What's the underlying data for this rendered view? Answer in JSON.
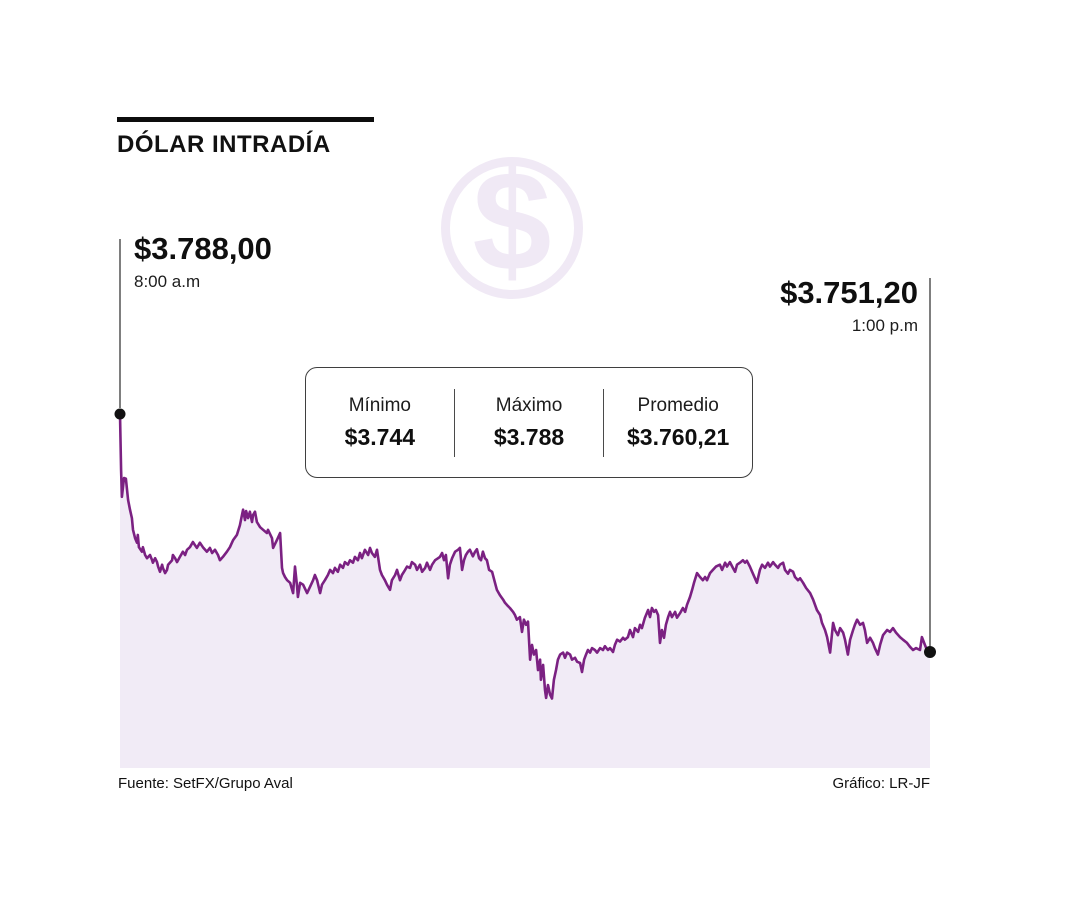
{
  "header": {
    "title": "DÓLAR INTRADÍA",
    "icon_glyph": "$"
  },
  "annotations": {
    "start": {
      "price": "$3.788,00",
      "time": "8:00 a.m"
    },
    "end": {
      "price": "$3.751,20",
      "time": "1:00 p.m"
    }
  },
  "stats": {
    "items": [
      {
        "label": "Mínimo",
        "value": "$3.744"
      },
      {
        "label": "Máximo",
        "value": "$3.788"
      },
      {
        "label": "Promedio",
        "value": "$3.760,21"
      }
    ]
  },
  "footer": {
    "source": "Fuente: SetFX/Grupo Aval",
    "credit": "Gráfico: LR-JF"
  },
  "chart_data": {
    "type": "area",
    "title": "DÓLAR INTRADÍA",
    "x_unit": "minutes since 8:00 a.m",
    "x_range": [
      0,
      300
    ],
    "x_start_label": "8:00 a.m",
    "x_end_label": "1:00 p.m",
    "y_unit": "COP per USD",
    "ylim": [
      3733,
      3791
    ],
    "open": 3788.0,
    "close": 3751.2,
    "min": 3744,
    "max": 3788,
    "average": 3760.21,
    "grid": false,
    "legend": false,
    "colors": {
      "line": "#7B2182",
      "fill": "#F1EBF6",
      "icon": "#F0E9F5",
      "dot": "#111111",
      "annotation_line": "#3a3a3a"
    },
    "points": [
      [
        0,
        3788
      ],
      [
        0.4,
        3779.3
      ],
      [
        0.7,
        3775.2
      ],
      [
        1.5,
        3778.1
      ],
      [
        2.2,
        3778
      ],
      [
        3,
        3774.7
      ],
      [
        3.7,
        3773.2
      ],
      [
        4.4,
        3771.9
      ],
      [
        4.8,
        3770.1
      ],
      [
        5.6,
        3768.8
      ],
      [
        6.3,
        3768.1
      ],
      [
        6.6,
        3769.3
      ],
      [
        7,
        3767.4
      ],
      [
        8.1,
        3766.7
      ],
      [
        8.5,
        3767.4
      ],
      [
        9.3,
        3766.2
      ],
      [
        10,
        3765.7
      ],
      [
        11.1,
        3766.2
      ],
      [
        11.9,
        3765.4
      ],
      [
        12.2,
        3765
      ],
      [
        13,
        3765.7
      ],
      [
        13.7,
        3765.1
      ],
      [
        14.1,
        3764.4
      ],
      [
        14.8,
        3763.6
      ],
      [
        15.6,
        3764.7
      ],
      [
        15.9,
        3764.2
      ],
      [
        16.7,
        3763.4
      ],
      [
        17.4,
        3763.9
      ],
      [
        17.8,
        3764.7
      ],
      [
        19.3,
        3765.4
      ],
      [
        19.6,
        3766.2
      ],
      [
        20.4,
        3765.7
      ],
      [
        21.1,
        3765.1
      ],
      [
        22.2,
        3765.9
      ],
      [
        23.3,
        3766.7
      ],
      [
        24.1,
        3766.2
      ],
      [
        24.8,
        3767
      ],
      [
        25.9,
        3767.4
      ],
      [
        27,
        3768.2
      ],
      [
        27.8,
        3767.7
      ],
      [
        28.5,
        3767.3
      ],
      [
        29.6,
        3768.1
      ],
      [
        30.7,
        3767.4
      ],
      [
        32.2,
        3766.7
      ],
      [
        33.3,
        3767.3
      ],
      [
        34.1,
        3766.5
      ],
      [
        35.2,
        3767
      ],
      [
        36.3,
        3766.2
      ],
      [
        37,
        3765.4
      ],
      [
        38.1,
        3765.9
      ],
      [
        39.6,
        3766.7
      ],
      [
        40.7,
        3767.4
      ],
      [
        41.9,
        3768.5
      ],
      [
        43.3,
        3769.3
      ],
      [
        44.4,
        3770.8
      ],
      [
        45.2,
        3772.4
      ],
      [
        45.6,
        3773.2
      ],
      [
        46.3,
        3771.6
      ],
      [
        46.7,
        3773
      ],
      [
        47.4,
        3771.9
      ],
      [
        48.1,
        3772.9
      ],
      [
        48.9,
        3771.3
      ],
      [
        49.3,
        3772.4
      ],
      [
        50,
        3772.9
      ],
      [
        50.7,
        3771.3
      ],
      [
        51.9,
        3770.5
      ],
      [
        53,
        3770.1
      ],
      [
        54.4,
        3769.6
      ],
      [
        54.8,
        3770.1
      ],
      [
        56.3,
        3768.8
      ],
      [
        56.7,
        3767.3
      ],
      [
        58.1,
        3768.5
      ],
      [
        59.3,
        3769.6
      ],
      [
        60,
        3764.2
      ],
      [
        60.4,
        3763.4
      ],
      [
        61.1,
        3762.8
      ],
      [
        61.9,
        3762.3
      ],
      [
        63,
        3761.9
      ],
      [
        64.1,
        3760.3
      ],
      [
        64.8,
        3764.4
      ],
      [
        65.6,
        3761.3
      ],
      [
        65.9,
        3759.7
      ],
      [
        66.7,
        3761.9
      ],
      [
        67.8,
        3761.6
      ],
      [
        69.3,
        3760.3
      ],
      [
        70.4,
        3761.3
      ],
      [
        71.5,
        3762.3
      ],
      [
        72.2,
        3763.1
      ],
      [
        73,
        3762.3
      ],
      [
        74.1,
        3760.3
      ],
      [
        74.8,
        3761.6
      ],
      [
        75.9,
        3762.3
      ],
      [
        77,
        3763.1
      ],
      [
        77.8,
        3763.9
      ],
      [
        78.9,
        3763.4
      ],
      [
        79.6,
        3764.2
      ],
      [
        80.7,
        3763.6
      ],
      [
        81.5,
        3764.7
      ],
      [
        82.6,
        3764.2
      ],
      [
        83.3,
        3765.1
      ],
      [
        84.4,
        3764.7
      ],
      [
        85.2,
        3765.4
      ],
      [
        86.3,
        3765
      ],
      [
        87,
        3765.9
      ],
      [
        88.1,
        3765.4
      ],
      [
        88.9,
        3766.5
      ],
      [
        89.6,
        3765.7
      ],
      [
        90.7,
        3767
      ],
      [
        91.9,
        3766.2
      ],
      [
        92.6,
        3767.3
      ],
      [
        93.3,
        3766.5
      ],
      [
        94.4,
        3765.9
      ],
      [
        95.2,
        3767
      ],
      [
        96.3,
        3763.9
      ],
      [
        97,
        3763.1
      ],
      [
        98.1,
        3762.3
      ],
      [
        98.9,
        3761.6
      ],
      [
        100,
        3760.8
      ],
      [
        100.7,
        3762.3
      ],
      [
        101.9,
        3763.1
      ],
      [
        102.6,
        3763.9
      ],
      [
        103.7,
        3762.3
      ],
      [
        104.4,
        3763.1
      ],
      [
        105.6,
        3763.9
      ],
      [
        106.3,
        3764.4
      ],
      [
        107.4,
        3764.2
      ],
      [
        108.1,
        3765.1
      ],
      [
        109.3,
        3764.7
      ],
      [
        110,
        3763.9
      ],
      [
        111.1,
        3764.7
      ],
      [
        111.9,
        3763.6
      ],
      [
        113,
        3764.2
      ],
      [
        113.7,
        3765
      ],
      [
        114.8,
        3763.9
      ],
      [
        115.6,
        3764.7
      ],
      [
        116.7,
        3765.4
      ],
      [
        117.8,
        3765.7
      ],
      [
        118.5,
        3765.9
      ],
      [
        119.3,
        3766.5
      ],
      [
        120,
        3765.4
      ],
      [
        120.7,
        3766.2
      ],
      [
        121.5,
        3762.6
      ],
      [
        122.2,
        3764.7
      ],
      [
        123,
        3765.7
      ],
      [
        124.1,
        3766.7
      ],
      [
        125.2,
        3767
      ],
      [
        125.9,
        3767.3
      ],
      [
        126.7,
        3763.9
      ],
      [
        127.4,
        3765.4
      ],
      [
        128.1,
        3766.2
      ],
      [
        128.9,
        3766.7
      ],
      [
        129.6,
        3767
      ],
      [
        130.7,
        3766
      ],
      [
        131.5,
        3766.7
      ],
      [
        132.2,
        3767.1
      ],
      [
        133,
        3765.7
      ],
      [
        133.7,
        3765.4
      ],
      [
        134.4,
        3766.7
      ],
      [
        135.2,
        3765.7
      ],
      [
        135.9,
        3765.4
      ],
      [
        136.7,
        3763.9
      ],
      [
        137.8,
        3763.6
      ],
      [
        138.9,
        3761.9
      ],
      [
        139.6,
        3760.8
      ],
      [
        140.7,
        3760
      ],
      [
        141.9,
        3759.3
      ],
      [
        142.6,
        3758.8
      ],
      [
        143.7,
        3758.3
      ],
      [
        144.4,
        3758
      ],
      [
        145.6,
        3757.4
      ],
      [
        146.3,
        3756.9
      ],
      [
        147,
        3756.2
      ],
      [
        148.1,
        3756.6
      ],
      [
        148.9,
        3754.3
      ],
      [
        149.6,
        3756.2
      ],
      [
        150.4,
        3755.4
      ],
      [
        151.1,
        3755.9
      ],
      [
        151.9,
        3750
      ],
      [
        152.6,
        3752.3
      ],
      [
        153.3,
        3750.8
      ],
      [
        154.1,
        3751.5
      ],
      [
        154.8,
        3748.4
      ],
      [
        155.6,
        3750
      ],
      [
        155.9,
        3746.9
      ],
      [
        156.7,
        3749.2
      ],
      [
        157.4,
        3745.3
      ],
      [
        157.8,
        3744.1
      ],
      [
        158.5,
        3746.1
      ],
      [
        159.3,
        3744.6
      ],
      [
        160,
        3744
      ],
      [
        160.7,
        3746.9
      ],
      [
        161.5,
        3748.4
      ],
      [
        162.2,
        3750
      ],
      [
        163,
        3750.8
      ],
      [
        164.1,
        3751.1
      ],
      [
        164.8,
        3750.3
      ],
      [
        165.6,
        3751.1
      ],
      [
        166.7,
        3750.8
      ],
      [
        167.4,
        3750
      ],
      [
        168.5,
        3750.3
      ],
      [
        169.3,
        3749.7
      ],
      [
        170.4,
        3749.5
      ],
      [
        171.1,
        3748.1
      ],
      [
        171.9,
        3750
      ],
      [
        172.6,
        3750.8
      ],
      [
        173.3,
        3751.5
      ],
      [
        174.1,
        3751.1
      ],
      [
        174.8,
        3751.8
      ],
      [
        175.9,
        3751.5
      ],
      [
        176.7,
        3751.1
      ],
      [
        177.8,
        3751.8
      ],
      [
        178.9,
        3751.5
      ],
      [
        179.6,
        3752.1
      ],
      [
        180.7,
        3751.5
      ],
      [
        181.5,
        3751.8
      ],
      [
        182.6,
        3751.2
      ],
      [
        183.3,
        3752.3
      ],
      [
        184.1,
        3753.1
      ],
      [
        185.2,
        3752.8
      ],
      [
        186.3,
        3753.4
      ],
      [
        187,
        3753.1
      ],
      [
        188.1,
        3753.5
      ],
      [
        188.9,
        3754.6
      ],
      [
        190,
        3753.5
      ],
      [
        190.7,
        3754.9
      ],
      [
        191.9,
        3754.3
      ],
      [
        192.6,
        3755.4
      ],
      [
        193.3,
        3754.9
      ],
      [
        194.4,
        3756.5
      ],
      [
        195.6,
        3757.7
      ],
      [
        196.3,
        3756.6
      ],
      [
        197,
        3758
      ],
      [
        197.8,
        3757.4
      ],
      [
        198.5,
        3757.7
      ],
      [
        199.3,
        3756.9
      ],
      [
        200,
        3752.6
      ],
      [
        200.7,
        3754.6
      ],
      [
        201.5,
        3753.4
      ],
      [
        202.2,
        3755.4
      ],
      [
        203,
        3756.6
      ],
      [
        203.7,
        3757.4
      ],
      [
        204.4,
        3756.6
      ],
      [
        205.6,
        3757.4
      ],
      [
        206.3,
        3756.5
      ],
      [
        207.4,
        3757.2
      ],
      [
        208.5,
        3758
      ],
      [
        209.3,
        3757.4
      ],
      [
        210,
        3758.5
      ],
      [
        211.1,
        3759.7
      ],
      [
        211.9,
        3760.8
      ],
      [
        212.6,
        3761.9
      ],
      [
        213.7,
        3763.4
      ],
      [
        214.8,
        3762.8
      ],
      [
        215.9,
        3762.3
      ],
      [
        216.7,
        3762.8
      ],
      [
        217.4,
        3762.3
      ],
      [
        218.5,
        3763.4
      ],
      [
        219.6,
        3763.9
      ],
      [
        220.7,
        3764.4
      ],
      [
        222.2,
        3764.7
      ],
      [
        223,
        3763.9
      ],
      [
        224.1,
        3765
      ],
      [
        224.8,
        3764.4
      ],
      [
        225.9,
        3765.1
      ],
      [
        227,
        3764.2
      ],
      [
        227.8,
        3763.6
      ],
      [
        228.5,
        3764.7
      ],
      [
        229.6,
        3765
      ],
      [
        230.7,
        3765.4
      ],
      [
        231.5,
        3765
      ],
      [
        232.2,
        3765.3
      ],
      [
        233.3,
        3764.4
      ],
      [
        234.1,
        3763.6
      ],
      [
        235.2,
        3762.6
      ],
      [
        235.9,
        3761.9
      ],
      [
        237,
        3763.9
      ],
      [
        237.8,
        3764.7
      ],
      [
        238.9,
        3764.2
      ],
      [
        240,
        3765
      ],
      [
        240.7,
        3764.4
      ],
      [
        241.9,
        3765.1
      ],
      [
        242.6,
        3764.7
      ],
      [
        243.7,
        3764.2
      ],
      [
        244.4,
        3764.7
      ],
      [
        245.6,
        3765
      ],
      [
        246.3,
        3763.9
      ],
      [
        247.4,
        3763.3
      ],
      [
        248.1,
        3763.9
      ],
      [
        249.3,
        3763.6
      ],
      [
        250,
        3762.8
      ],
      [
        251.1,
        3762.3
      ],
      [
        251.9,
        3762.6
      ],
      [
        253,
        3761.9
      ],
      [
        254.1,
        3761.1
      ],
      [
        255.6,
        3760.3
      ],
      [
        256.7,
        3759.3
      ],
      [
        258.1,
        3757.7
      ],
      [
        259.3,
        3756.9
      ],
      [
        260,
        3755.7
      ],
      [
        261.1,
        3754.6
      ],
      [
        261.9,
        3753.5
      ],
      [
        263,
        3751.1
      ],
      [
        264.1,
        3755.7
      ],
      [
        264.8,
        3754.6
      ],
      [
        265.9,
        3753.8
      ],
      [
        266.7,
        3754.9
      ],
      [
        267.8,
        3754.2
      ],
      [
        268.5,
        3753.1
      ],
      [
        269.6,
        3750.8
      ],
      [
        270.4,
        3753.1
      ],
      [
        271.5,
        3754.6
      ],
      [
        272.2,
        3755.4
      ],
      [
        273,
        3756.2
      ],
      [
        274.1,
        3755.4
      ],
      [
        275.2,
        3755.7
      ],
      [
        275.9,
        3754.6
      ],
      [
        276.7,
        3752.6
      ],
      [
        277.8,
        3753.4
      ],
      [
        278.9,
        3752.6
      ],
      [
        279.6,
        3751.8
      ],
      [
        280.7,
        3750.8
      ],
      [
        281.5,
        3752.3
      ],
      [
        282.6,
        3753.8
      ],
      [
        284.1,
        3754.6
      ],
      [
        285.2,
        3754.3
      ],
      [
        286.3,
        3754.9
      ],
      [
        287.4,
        3754.2
      ],
      [
        288.9,
        3753.5
      ],
      [
        290,
        3753.1
      ],
      [
        291.5,
        3752.6
      ],
      [
        292.6,
        3752
      ],
      [
        293.7,
        3751.5
      ],
      [
        294.8,
        3751.8
      ],
      [
        296.3,
        3751.5
      ],
      [
        297,
        3753.5
      ],
      [
        298.1,
        3752.3
      ],
      [
        298.9,
        3751.5
      ],
      [
        299.6,
        3751.2
      ],
      [
        300,
        3751.2
      ]
    ]
  }
}
